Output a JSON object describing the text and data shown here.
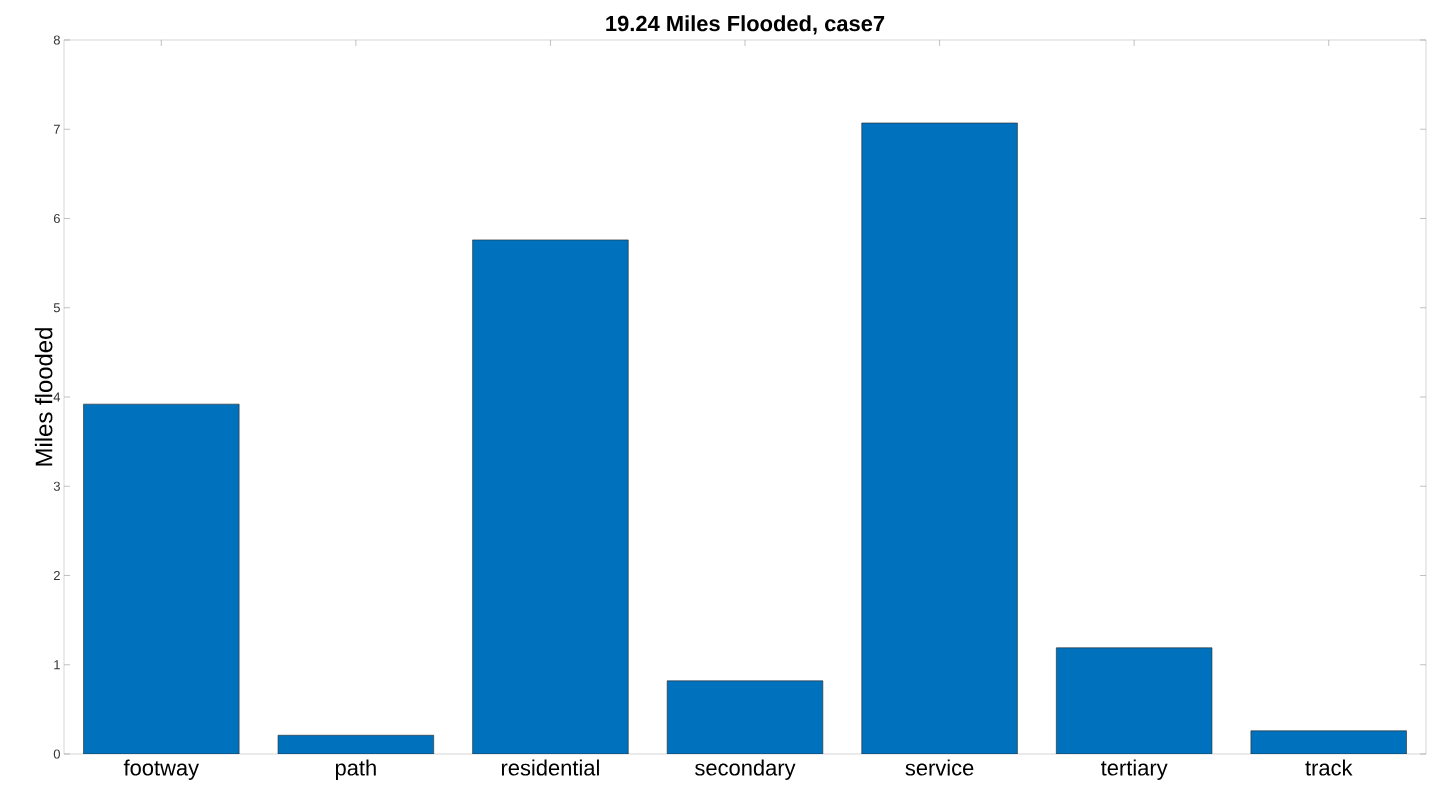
{
  "chart_data": {
    "type": "bar",
    "title": "19.24 Miles Flooded, case7",
    "ylabel": "Miles flooded",
    "categories": [
      "footway",
      "path",
      "residential",
      "secondary",
      "service",
      "tertiary",
      "track"
    ],
    "values": [
      3.92,
      0.21,
      5.76,
      0.82,
      7.07,
      1.19,
      0.26
    ],
    "color": "#0072bd",
    "ylim": [
      0,
      8
    ],
    "yticks": [
      0,
      1,
      2,
      3,
      4,
      5,
      6,
      7,
      8
    ],
    "grid": false
  }
}
